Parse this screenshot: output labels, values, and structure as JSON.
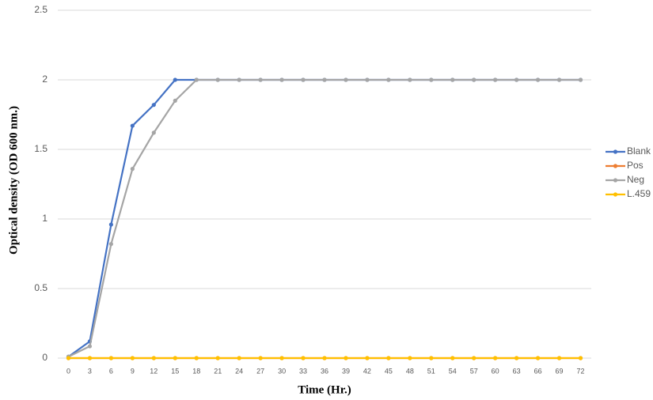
{
  "chart_data": {
    "type": "line",
    "y_label": "Optical density (OD 600 nm.)",
    "x_label": "Time (Hr.)",
    "categories": [
      "0",
      "3",
      "6",
      "9",
      "12",
      "15",
      "18",
      "21",
      "24",
      "27",
      "30",
      "33",
      "36",
      "39",
      "42",
      "45",
      "48",
      "51",
      "54",
      "57",
      "60",
      "63",
      "66",
      "69",
      "72"
    ],
    "series": [
      {
        "name": "Blank",
        "color": "#4472c4",
        "values": [
          0.01,
          0.12,
          0.96,
          1.67,
          1.82,
          2,
          2,
          2,
          2,
          2,
          2,
          2,
          2,
          2,
          2,
          2,
          2,
          2,
          2,
          2,
          2,
          2,
          2,
          2,
          2
        ]
      },
      {
        "name": "Pos",
        "color": "#ed7d31",
        "values": [
          0,
          0,
          0,
          0,
          0,
          0,
          0,
          0,
          0,
          0,
          0,
          0,
          0,
          0,
          0,
          0,
          0,
          0,
          0,
          0,
          0,
          0,
          0,
          0,
          0
        ]
      },
      {
        "name": "Neg",
        "color": "#a5a5a5",
        "values": [
          0.01,
          0.085,
          0.82,
          1.36,
          1.62,
          1.85,
          2,
          2,
          2,
          2,
          2,
          2,
          2,
          2,
          2,
          2,
          2,
          2,
          2,
          2,
          2,
          2,
          2,
          2,
          2
        ]
      },
      {
        "name": "L.459",
        "color": "#ffc000",
        "values": [
          0,
          0,
          0,
          0,
          0,
          0,
          0,
          0,
          0,
          0,
          0,
          0,
          0,
          0,
          0,
          0,
          0,
          0,
          0,
          0,
          0,
          0,
          0,
          0,
          0
        ]
      }
    ],
    "ylim": [
      0,
      2.5
    ],
    "yticks": [
      0,
      0.5,
      1,
      1.5,
      2,
      2.5
    ],
    "grid": true,
    "legend": "right"
  }
}
